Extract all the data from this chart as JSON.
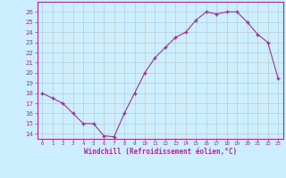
{
  "x": [
    0,
    1,
    2,
    3,
    4,
    5,
    6,
    7,
    8,
    9,
    10,
    11,
    12,
    13,
    14,
    15,
    16,
    17,
    18,
    19,
    20,
    21,
    22,
    23
  ],
  "y": [
    18,
    17.5,
    17,
    16,
    15,
    15,
    13.8,
    13.7,
    16,
    18,
    20,
    21.5,
    22.5,
    23.5,
    24,
    25.2,
    26,
    25.8,
    26,
    26,
    25,
    23.8,
    23,
    19.5
  ],
  "xlabel": "Windchill (Refroidissement éolien,°C)",
  "ylim": [
    13.5,
    27.0
  ],
  "xlim": [
    -0.5,
    23.5
  ],
  "yticks": [
    14,
    15,
    16,
    17,
    18,
    19,
    20,
    21,
    22,
    23,
    24,
    25,
    26
  ],
  "xtick_labels": [
    "0",
    "1",
    "2",
    "3",
    "4",
    "5",
    "6",
    "7",
    "8",
    "9",
    "10",
    "11",
    "12",
    "13",
    "14",
    "15",
    "16",
    "17",
    "18",
    "19",
    "20",
    "21",
    "22",
    "23"
  ],
  "line_color": "#993399",
  "marker_color": "#993399",
  "bg_color": "#cceeff",
  "grid_color": "#bbcccc",
  "font_color": "#993399",
  "spine_color": "#993399"
}
